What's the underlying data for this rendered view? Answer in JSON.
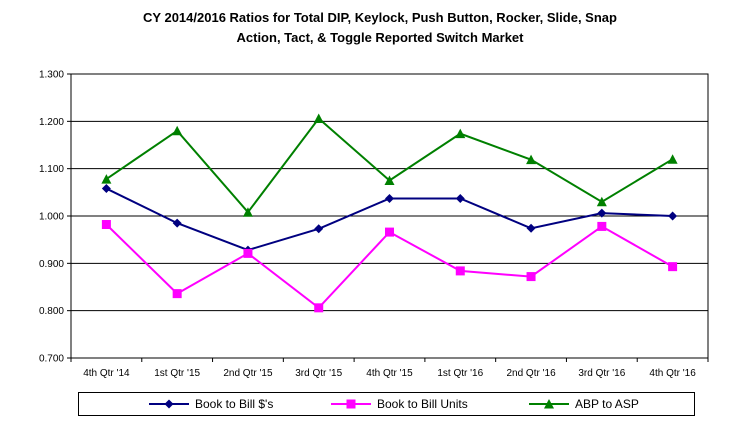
{
  "chart_data": {
    "type": "line",
    "title_lines": [
      "CY 2014/2016 Ratios for Total DIP, Keylock, Push Button, Rocker, Slide, Snap",
      "Action, Tact, & Toggle Reported Switch Market"
    ],
    "categories": [
      "4th Qtr '14",
      "1st Qtr '15",
      "2nd Qtr '15",
      "3rd Qtr '15",
      "4th Qtr '15",
      "1st Qtr '16",
      "2nd Qtr '16",
      "3rd Qtr '16",
      "4th Qtr '16"
    ],
    "ylim": [
      0.7,
      1.3
    ],
    "yticks": [
      "0.700",
      "0.800",
      "0.900",
      "1.000",
      "1.100",
      "1.200",
      "1.300"
    ],
    "ytick_values": [
      0.7,
      0.8,
      0.9,
      1.0,
      1.1,
      1.2,
      1.3
    ],
    "grid": true,
    "legend_position": "bottom",
    "series": [
      {
        "name": "Book to Bill $'s",
        "color": "#000080",
        "marker": "diamond",
        "values": [
          1.058,
          0.985,
          0.928,
          0.973,
          1.037,
          1.037,
          0.974,
          1.006,
          1.0
        ]
      },
      {
        "name": "Book to Bill Units",
        "color": "#FF00FF",
        "marker": "square",
        "values": [
          0.982,
          0.836,
          0.921,
          0.806,
          0.966,
          0.884,
          0.872,
          0.978,
          0.893
        ]
      },
      {
        "name": "ABP to ASP",
        "color": "#008000",
        "marker": "triangle",
        "values": [
          1.078,
          1.18,
          1.008,
          1.206,
          1.075,
          1.174,
          1.119,
          1.03,
          1.12
        ]
      }
    ]
  }
}
